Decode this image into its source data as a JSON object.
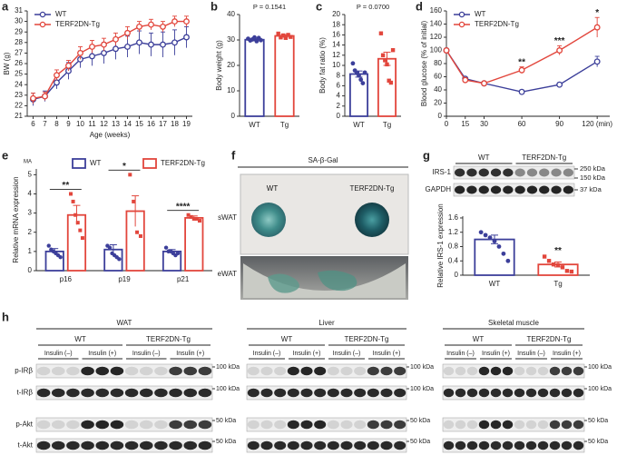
{
  "chart_data": [
    {
      "panel": "a",
      "type": "line",
      "ylabel": "BW (g)",
      "xlabel": "Age (weeks)",
      "x": [
        6,
        7,
        8,
        9,
        10,
        11,
        12,
        13,
        14,
        15,
        16,
        17,
        18,
        19
      ],
      "xlim": [
        5.5,
        19.5
      ],
      "xticks": [
        6,
        7,
        8,
        9,
        10,
        11,
        12,
        13,
        14,
        15,
        16,
        17,
        18,
        19
      ],
      "ylim": [
        21,
        31
      ],
      "yticks": [
        21,
        22,
        23,
        24,
        25,
        26,
        27,
        28,
        29,
        30,
        31
      ],
      "legend": "upper left",
      "series": [
        {
          "name": "WT",
          "color": "#3c3f9a",
          "values": [
            22.6,
            22.9,
            24.2,
            25.3,
            26.4,
            26.7,
            27.0,
            27.4,
            27.6,
            28.0,
            27.8,
            27.8,
            28.0,
            28.5
          ],
          "errors": [
            0.6,
            0.5,
            0.6,
            0.8,
            0.8,
            0.9,
            1.0,
            1.0,
            1.0,
            1.1,
            1.1,
            1.2,
            1.2,
            1.0
          ]
        },
        {
          "name": "TERF2DN-Tg",
          "color": "#e2463c",
          "values": [
            22.7,
            22.9,
            24.9,
            25.8,
            27.0,
            27.6,
            27.8,
            28.3,
            28.9,
            29.5,
            29.7,
            29.5,
            30.0,
            30.0
          ],
          "errors": [
            0.5,
            0.4,
            0.5,
            0.5,
            0.6,
            0.6,
            0.6,
            0.6,
            0.6,
            0.5,
            0.5,
            0.5,
            0.5,
            0.5
          ]
        }
      ]
    },
    {
      "panel": "b",
      "type": "bar",
      "ylabel": "Body weight (g)",
      "categories": [
        "WT",
        "Tg"
      ],
      "values": [
        30.1,
        31.6
      ],
      "errors": [
        0.4,
        0.5
      ],
      "colors": [
        "#3c3f9a",
        "#e2463c"
      ],
      "points": [
        [
          30.5,
          29.8,
          30.2,
          31.0,
          29.5,
          30.8,
          29.9
        ],
        [
          32.5,
          31.0,
          31.8,
          30.8,
          32.0,
          31.2
        ]
      ],
      "annotations": [
        {
          "text": "P = 0.1541"
        }
      ],
      "ylim": [
        0,
        40
      ],
      "yticks": [
        0,
        10,
        20,
        30,
        40
      ]
    },
    {
      "panel": "c",
      "type": "bar",
      "ylabel": "Body fat ratio (%)",
      "categories": [
        "WT",
        "Tg"
      ],
      "values": [
        8.3,
        11.3
      ],
      "errors": [
        0.6,
        1.3
      ],
      "colors": [
        "#3c3f9a",
        "#e2463c"
      ],
      "points": [
        [
          10.4,
          9.0,
          8.5,
          8.0,
          7.2,
          6.5,
          8.6
        ],
        [
          16.3,
          12.0,
          11.0,
          10.2,
          7.0,
          6.6,
          13.0
        ]
      ],
      "annotations": [
        {
          "text": "P = 0.0700"
        }
      ],
      "ylim": [
        0,
        20
      ],
      "yticks": [
        0,
        2,
        4,
        6,
        8,
        10,
        12,
        14,
        16,
        18,
        20
      ]
    },
    {
      "panel": "d",
      "type": "line",
      "ylabel": "Blood glucose (% of initial)",
      "x": [
        0,
        15,
        30,
        60,
        90,
        120
      ],
      "xlim": [
        0,
        130
      ],
      "xticks": [
        0,
        15,
        30,
        60,
        90,
        {
          "value": 120,
          "label": "120 (min)"
        }
      ],
      "ylim": [
        0,
        160
      ],
      "yticks": [
        0,
        20,
        40,
        60,
        80,
        100,
        120,
        140,
        160
      ],
      "legend": "upper left",
      "series": [
        {
          "name": "WT",
          "color": "#3c3f9a",
          "values": [
            100,
            57,
            50,
            37,
            48,
            83
          ],
          "errors": [
            0,
            2,
            3,
            3,
            3,
            8
          ]
        },
        {
          "name": "TERF2DN-Tg",
          "color": "#e2463c",
          "values": [
            100,
            55,
            50,
            70,
            100,
            135
          ],
          "errors": [
            0,
            3,
            3,
            5,
            7,
            15
          ]
        }
      ],
      "annotations": [
        {
          "x": 60,
          "text": "**"
        },
        {
          "x": 90,
          "text": "***"
        },
        {
          "x": 120,
          "text": "*"
        }
      ]
    },
    {
      "panel": "e",
      "type": "grouped_bar",
      "note": "MA",
      "ylabel": "Relative mRNA expression",
      "categories": [
        "p16",
        "p19",
        "p21"
      ],
      "ylim": [
        0,
        5.3
      ],
      "yticks": [
        0,
        1,
        2,
        3,
        4,
        5
      ],
      "legend": "top",
      "series": [
        {
          "name": "WT",
          "color": "#3c3f9a",
          "values": [
            1.0,
            1.1,
            1.0
          ],
          "errors": [
            0.15,
            0.25,
            0.1
          ],
          "points": [
            [
              1.3,
              1.1,
              1.0,
              0.9,
              0.8,
              0.7
            ],
            [
              1.3,
              1.2,
              0.9,
              0.8,
              0.7,
              0.6
            ],
            [
              1.2,
              1.0,
              1.0,
              0.9,
              0.8,
              0.9
            ]
          ]
        },
        {
          "name": "TERF2DN-Tg",
          "color": "#e2463c",
          "values": [
            2.9,
            3.1,
            2.75
          ],
          "errors": [
            0.5,
            0.8,
            0.1
          ],
          "points": [
            [
              4.0,
              3.6,
              2.9,
              2.5,
              2.1,
              1.7
            ],
            [
              5.0,
              3.6,
              2.0,
              1.8
            ],
            [
              2.9,
              2.8,
              2.7,
              2.7,
              2.6
            ]
          ]
        }
      ],
      "annotations": [
        {
          "category": "p16",
          "text": "**"
        },
        {
          "category": "p19",
          "text": "*"
        },
        {
          "category": "p21",
          "text": "****"
        }
      ]
    },
    {
      "panel": "g",
      "type": "bar",
      "ylabel": "Relative IRS-1 expression",
      "categories": [
        "WT",
        "Tg"
      ],
      "values": [
        1.0,
        0.3
      ],
      "errors": [
        0.12,
        0.07
      ],
      "colors": [
        "#3c3f9a",
        "#e2463c"
      ],
      "points": [
        [
          1.2,
          1.12,
          1.05,
          0.95,
          0.8,
          0.6,
          0.4
        ],
        [
          0.52,
          0.4,
          0.3,
          0.28,
          0.22,
          0.12,
          0.1
        ]
      ],
      "annotations": [
        {
          "category": "Tg",
          "text": "**"
        }
      ],
      "ylim": [
        0,
        1.65
      ],
      "yticks": [
        0,
        0.4,
        0.8,
        1.2,
        1.6
      ]
    }
  ],
  "panel_f": {
    "letter": "f",
    "title": "SA-β-Gal",
    "columns": [
      "WT",
      "TERF2DN-Tg"
    ],
    "rows": [
      "sWAT",
      "eWAT"
    ]
  },
  "panel_g_blot": {
    "groups": [
      "WT",
      "TERF2DN-Tg"
    ],
    "rows": [
      "IRS-1",
      "GAPDH"
    ],
    "markers": [
      "250 kDa",
      "150 kDa",
      "37 kDa"
    ]
  },
  "panel_h": {
    "letter": "h",
    "row_labels": [
      "p-IRβ",
      "t-IRβ",
      "p-Akt",
      "t-Akt"
    ],
    "groups": [
      {
        "title": "WAT",
        "genotypes": [
          "WT",
          "TERF2DN-Tg"
        ],
        "conditions": [
          "Insulin (–)",
          "Insulin (+)",
          "Insulin (–)",
          "Insulin (+)"
        ],
        "markers": [
          "100 kDa",
          "100 kDa",
          "50 kDa",
          "50 kDa"
        ]
      },
      {
        "title": "Liver",
        "genotypes": [
          "WT",
          "TERF2DN-Tg"
        ],
        "conditions": [
          "Insulin (–)",
          "Insulin (+)",
          "Insulin (–)",
          "Insulin (+)"
        ],
        "markers": [
          "100 kDa",
          "100 kDa",
          "50 kDa",
          "50 kDa"
        ]
      },
      {
        "title": "Skeletal muscle",
        "genotypes": [
          "WT",
          "TERF2DN-Tg"
        ],
        "conditions": [
          "Insulin (–)",
          "Insulin (+)",
          "Insulin (–)",
          "Insulin (+)"
        ],
        "markers": [
          "100 kDa",
          "100 kDa",
          "50 kDa",
          "50 kDa"
        ]
      }
    ]
  }
}
